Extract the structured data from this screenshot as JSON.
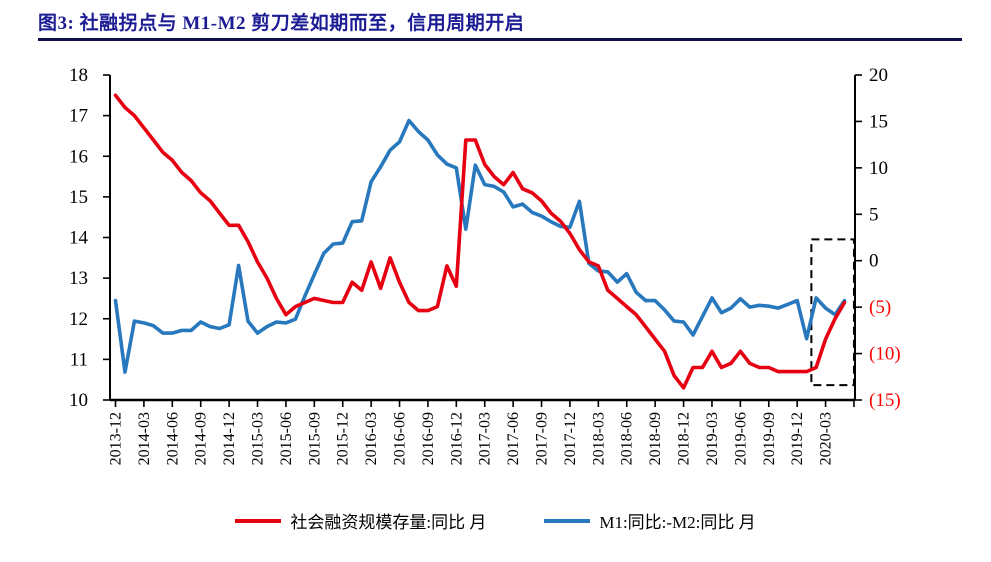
{
  "title": "图3:  社融拐点与 M1-M2 剪刀差如期而至，信用周期开启",
  "colors": {
    "title_navy": "#1c1c94",
    "tsf_red": "#e60012",
    "m1m2_blue": "#2878be",
    "negative_label_red": "#ff0000",
    "axis_black": "#000000"
  },
  "legend": {
    "items": [
      {
        "label": "社会融资规模存量:同比 月",
        "color": "#e60012"
      },
      {
        "label": "M1:同比:-M2:同比 月",
        "color": "#2878be"
      }
    ]
  },
  "chart_data": {
    "type": "line",
    "x": [
      "2013-12",
      "2014-01",
      "2014-02",
      "2014-03",
      "2014-04",
      "2014-05",
      "2014-06",
      "2014-07",
      "2014-08",
      "2014-09",
      "2014-10",
      "2014-11",
      "2014-12",
      "2015-01",
      "2015-02",
      "2015-03",
      "2015-04",
      "2015-05",
      "2015-06",
      "2015-07",
      "2015-08",
      "2015-09",
      "2015-10",
      "2015-11",
      "2015-12",
      "2016-01",
      "2016-02",
      "2016-03",
      "2016-04",
      "2016-05",
      "2016-06",
      "2016-07",
      "2016-08",
      "2016-09",
      "2016-10",
      "2016-11",
      "2016-12",
      "2017-01",
      "2017-02",
      "2017-03",
      "2017-04",
      "2017-05",
      "2017-06",
      "2017-07",
      "2017-08",
      "2017-09",
      "2017-10",
      "2017-11",
      "2017-12",
      "2018-01",
      "2018-02",
      "2018-03",
      "2018-04",
      "2018-05",
      "2018-06",
      "2018-07",
      "2018-08",
      "2018-09",
      "2018-10",
      "2018-11",
      "2018-12",
      "2019-01",
      "2019-02",
      "2019-03",
      "2019-04",
      "2019-05",
      "2019-06",
      "2019-07",
      "2019-08",
      "2019-09",
      "2019-10",
      "2019-11",
      "2019-12",
      "2020-01",
      "2020-02",
      "2020-03",
      "2020-04",
      "2020-05"
    ],
    "x_tick_labels": [
      "2013-12",
      "2014-03",
      "2014-06",
      "2014-09",
      "2014-12",
      "2015-03",
      "2015-06",
      "2015-09",
      "2015-12",
      "2016-03",
      "2016-06",
      "2016-09",
      "2016-12",
      "2017-03",
      "2017-06",
      "2017-09",
      "2017-12",
      "2018-03",
      "2018-06",
      "2018-09",
      "2018-12",
      "2019-03",
      "2019-06",
      "2019-09",
      "2019-12",
      "2020-03"
    ],
    "series": [
      {
        "name": "社会融资规模存量:同比 月",
        "axis": "left",
        "color": "#e60012",
        "values": [
          17.5,
          17.2,
          17.0,
          16.7,
          16.4,
          16.1,
          15.9,
          15.6,
          15.4,
          15.1,
          14.9,
          14.6,
          14.3,
          14.3,
          13.9,
          13.4,
          13.0,
          12.5,
          12.1,
          12.3,
          12.4,
          12.5,
          12.45,
          12.4,
          12.4,
          12.9,
          12.7,
          13.4,
          12.75,
          13.5,
          12.9,
          12.4,
          12.2,
          12.2,
          12.3,
          13.3,
          12.8,
          16.4,
          16.4,
          15.8,
          15.5,
          15.3,
          15.6,
          15.2,
          15.1,
          14.9,
          14.6,
          14.4,
          14.1,
          13.7,
          13.4,
          13.3,
          12.7,
          12.5,
          12.3,
          12.1,
          11.8,
          11.5,
          11.2,
          10.6,
          10.3,
          10.8,
          10.8,
          11.2,
          10.8,
          10.9,
          11.2,
          10.9,
          10.8,
          10.8,
          10.7,
          10.7,
          10.7,
          10.7,
          10.8,
          11.5,
          12.0,
          12.4
        ]
      },
      {
        "name": "M1:同比:-M2:同比 月",
        "axis": "right",
        "color": "#2878be",
        "values": [
          -4.3,
          -12.0,
          -6.5,
          -6.7,
          -7.0,
          -7.8,
          -7.8,
          -7.5,
          -7.5,
          -6.6,
          -7.1,
          -7.3,
          -6.9,
          -0.5,
          -6.5,
          -7.8,
          -7.1,
          -6.6,
          -6.7,
          -6.3,
          -3.8,
          -1.5,
          0.8,
          1.8,
          1.9,
          4.2,
          4.3,
          8.5,
          10.1,
          11.9,
          12.8,
          15.1,
          13.9,
          13.0,
          11.4,
          10.4,
          10.0,
          3.4,
          10.3,
          8.2,
          8.0,
          7.4,
          5.8,
          6.1,
          5.2,
          4.8,
          4.2,
          3.7,
          3.6,
          6.4,
          -0.3,
          -1.1,
          -1.2,
          -2.3,
          -1.4,
          -3.4,
          -4.3,
          -4.3,
          -5.3,
          -6.5,
          -6.6,
          -8.0,
          -6.0,
          -4.0,
          -5.6,
          -5.1,
          -4.1,
          -5.0,
          -4.8,
          -4.9,
          -5.1,
          -4.7,
          -4.3,
          -8.4,
          -4.0,
          -5.1,
          -5.8,
          -4.3
        ]
      }
    ],
    "left_axis": {
      "min": 10,
      "max": 18,
      "tick_values": [
        18,
        17,
        16,
        15,
        14,
        13,
        12,
        11,
        10
      ],
      "tick_labels": [
        "18",
        "17",
        "16",
        "15",
        "14",
        "13",
        "12",
        "11",
        "10"
      ]
    },
    "right_axis": {
      "min": -15,
      "max": 20,
      "tick_values": [
        20,
        15,
        10,
        5,
        0,
        -5,
        -10,
        -15
      ],
      "tick_labels": [
        "20",
        "15",
        "10",
        "5",
        "0",
        "(5)",
        "(10)",
        "(15)"
      ]
    },
    "grid": false,
    "legend_position": "bottom",
    "annotation_box": {
      "description": "dashed highlight box over most recent months",
      "month_start_index": 73.5,
      "month_end_index": 78,
      "right_value_top": 2.3,
      "right_value_bottom": -13.4
    }
  }
}
